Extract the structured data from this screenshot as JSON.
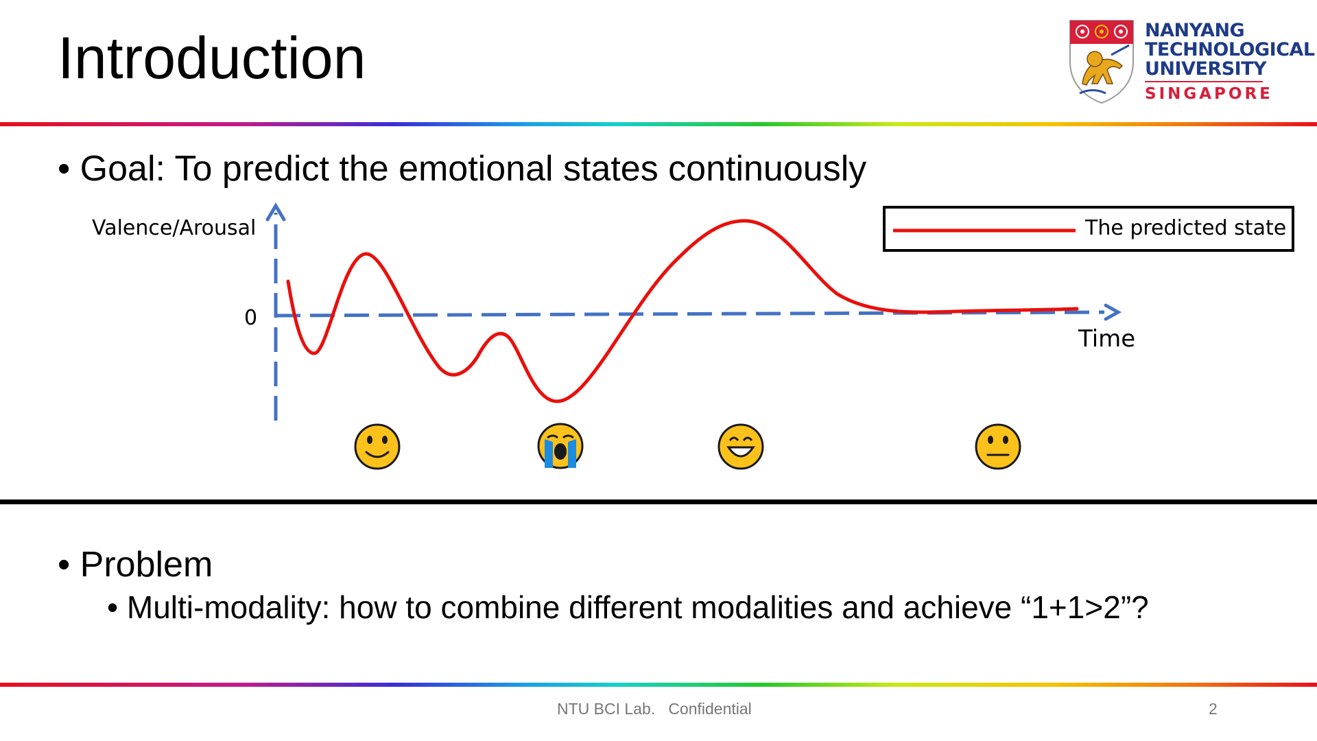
{
  "slide": {
    "title": "Introduction",
    "goal_bullet": "• Goal: To predict the emotional states continuously",
    "problem_bullet": "• Problem",
    "sub_bullet": "• Multi-modality: how to combine different modalities and achieve “1+1>2”?"
  },
  "logo": {
    "line1": "NANYANG",
    "line2": "TECHNOLOGICAL",
    "line3": "UNIVERSITY",
    "line4": "SINGAPORE",
    "colors": {
      "blue": "#1f3b87",
      "red": "#d71f3a"
    }
  },
  "footer": {
    "text": "NTU BCI Lab.   Confidential",
    "page": "2"
  },
  "chart_data": {
    "type": "line",
    "ylabel": "Valence/Arousal",
    "xlabel": "Time",
    "y_tick": "0",
    "legend": {
      "label": "The predicted state",
      "position": "top-right"
    },
    "series": [
      {
        "name": "The predicted state",
        "color": "#e8100c"
      }
    ],
    "emoji": [
      "slightly-smiling-face",
      "loudly-crying-face",
      "grinning-face",
      "neutral-face"
    ],
    "axis_color": "#4472c4",
    "grid": false
  }
}
